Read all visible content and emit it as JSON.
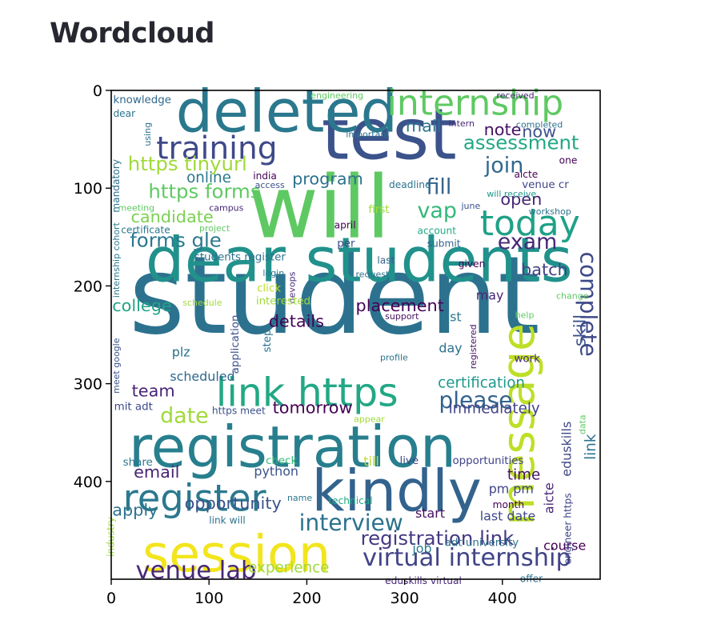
{
  "page": {
    "title": "Wordcloud"
  },
  "chart_data": {
    "type": "wordcloud",
    "title": "",
    "xlabel": "",
    "ylabel": "",
    "xlim": [
      0,
      500
    ],
    "ylim": [
      500,
      0
    ],
    "xticks": [
      0,
      100,
      200,
      300,
      400
    ],
    "yticks": [
      0,
      100,
      200,
      300,
      400
    ],
    "colormap": "viridis",
    "words": [
      {
        "text": "student",
        "x": 18,
        "y": 248,
        "size": 110,
        "color": "#2c728e"
      },
      {
        "text": "will",
        "x": 140,
        "y": 150,
        "size": 88,
        "color": "#5ec962"
      },
      {
        "text": "dear students",
        "x": 35,
        "y": 195,
        "size": 63,
        "color": "#21918c"
      },
      {
        "text": "test",
        "x": 215,
        "y": 70,
        "size": 72,
        "color": "#3b528b"
      },
      {
        "text": "deleted",
        "x": 66,
        "y": 42,
        "size": 60,
        "color": "#2a788e"
      },
      {
        "text": "registration",
        "x": 18,
        "y": 385,
        "size": 58,
        "color": "#277f8e"
      },
      {
        "text": "message",
        "x": 432,
        "y": 445,
        "size": 46,
        "color": "#bddf26",
        "rot": -90
      },
      {
        "text": "kindly",
        "x": 205,
        "y": 430,
        "size": 58,
        "color": "#33638d"
      },
      {
        "text": "session",
        "x": 32,
        "y": 492,
        "size": 52,
        "color": "#f2e51d"
      },
      {
        "text": "internship",
        "x": 282,
        "y": 25,
        "size": 36,
        "color": "#5ec962"
      },
      {
        "text": "link https",
        "x": 107,
        "y": 323,
        "size": 40,
        "color": "#22a884"
      },
      {
        "text": "register",
        "x": 12,
        "y": 430,
        "size": 38,
        "color": "#2a788e"
      },
      {
        "text": "today",
        "x": 377,
        "y": 148,
        "size": 36,
        "color": "#1fa187"
      },
      {
        "text": "training",
        "x": 46,
        "y": 70,
        "size": 32,
        "color": "#3e4989"
      },
      {
        "text": "virtual internship",
        "x": 257,
        "y": 486,
        "size": 25,
        "color": "#414487"
      },
      {
        "text": "venue lab",
        "x": 25,
        "y": 499,
        "size": 25,
        "color": "#482878"
      },
      {
        "text": "complete",
        "x": 480,
        "y": 165,
        "size": 23,
        "color": "#3e4989",
        "rot": 90
      },
      {
        "text": "please",
        "x": 335,
        "y": 325,
        "size": 23,
        "color": "#33638d"
      },
      {
        "text": "interview",
        "x": 192,
        "y": 450,
        "size": 23,
        "color": "#2c728e"
      },
      {
        "text": "registration link",
        "x": 255,
        "y": 465,
        "size": 20,
        "color": "#443983"
      },
      {
        "text": "https tinyurl",
        "x": 17,
        "y": 82,
        "size": 20,
        "color": "#a0da39"
      },
      {
        "text": "https forms",
        "x": 38,
        "y": 110,
        "size": 20,
        "color": "#5ec962"
      },
      {
        "text": "forms gle",
        "x": 19,
        "y": 160,
        "size": 20,
        "color": "#2a788e"
      },
      {
        "text": "assessment",
        "x": 360,
        "y": 60,
        "size": 20,
        "color": "#22a884"
      },
      {
        "text": "join",
        "x": 382,
        "y": 84,
        "size": 22,
        "color": "#31688e"
      },
      {
        "text": "fill",
        "x": 322,
        "y": 106,
        "size": 22,
        "color": "#33638d"
      },
      {
        "text": "vap",
        "x": 313,
        "y": 130,
        "size": 22,
        "color": "#35b779"
      },
      {
        "text": "exam",
        "x": 395,
        "y": 162,
        "size": 22,
        "color": "#482878"
      },
      {
        "text": "date",
        "x": 50,
        "y": 340,
        "size": 22,
        "color": "#a0da39"
      },
      {
        "text": "candidate",
        "x": 20,
        "y": 135,
        "size": 17,
        "color": "#7ad151"
      },
      {
        "text": "program",
        "x": 185,
        "y": 96,
        "size": 17,
        "color": "#2c728e"
      },
      {
        "text": "mail",
        "x": 301,
        "y": 42,
        "size": 17,
        "color": "#2c728e"
      },
      {
        "text": "note",
        "x": 381,
        "y": 46,
        "size": 17,
        "color": "#471063"
      },
      {
        "text": "now",
        "x": 420,
        "y": 48,
        "size": 17,
        "color": "#3b528b"
      },
      {
        "text": "open",
        "x": 398,
        "y": 117,
        "size": 17,
        "color": "#482475"
      },
      {
        "text": "batch",
        "x": 419,
        "y": 189,
        "size": 17,
        "color": "#424086"
      },
      {
        "text": "placement",
        "x": 250,
        "y": 226,
        "size": 17,
        "color": "#440154"
      },
      {
        "text": "details",
        "x": 161,
        "y": 242,
        "size": 17,
        "color": "#440154"
      },
      {
        "text": "college",
        "x": 1,
        "y": 226,
        "size": 17,
        "color": "#20a486"
      },
      {
        "text": "team",
        "x": 21,
        "y": 313,
        "size": 17,
        "color": "#482475"
      },
      {
        "text": "tomorrow",
        "x": 165,
        "y": 330,
        "size": 17,
        "color": "#440154"
      },
      {
        "text": "skill",
        "x": 485,
        "y": 262,
        "size": 17,
        "color": "#3b528b",
        "rot": -90
      },
      {
        "text": "certification",
        "x": 334,
        "y": 304,
        "size": 15,
        "color": "#1f988b"
      },
      {
        "text": "immediately",
        "x": 345,
        "y": 330,
        "size": 15,
        "color": "#414487"
      },
      {
        "text": "email",
        "x": 23,
        "y": 396,
        "size": 17,
        "color": "#482475"
      },
      {
        "text": "apply",
        "x": 1,
        "y": 435,
        "size": 17,
        "color": "#2c728e"
      },
      {
        "text": "opportunity",
        "x": 75,
        "y": 428,
        "size": 17,
        "color": "#3b528b"
      },
      {
        "text": "experience",
        "x": 140,
        "y": 493,
        "size": 15,
        "color": "#a0da39"
      },
      {
        "text": "online",
        "x": 77,
        "y": 94,
        "size": 15,
        "color": "#2a788e"
      },
      {
        "text": "students register",
        "x": 85,
        "y": 174,
        "size": 11,
        "color": "#2c728e"
      },
      {
        "text": "python",
        "x": 146,
        "y": 394,
        "size": 13,
        "color": "#3b528b"
      },
      {
        "text": "time",
        "x": 405,
        "y": 398,
        "size": 15,
        "color": "#471063"
      },
      {
        "text": "pm pm",
        "x": 386,
        "y": 412,
        "size": 13,
        "color": "#414487"
      },
      {
        "text": "last date",
        "x": 377,
        "y": 440,
        "size": 13,
        "color": "#3e4989"
      },
      {
        "text": "course",
        "x": 442,
        "y": 470,
        "size": 13,
        "color": "#440154"
      },
      {
        "text": "link",
        "x": 495,
        "y": 378,
        "size": 15,
        "color": "#2c728e",
        "rot": -90
      },
      {
        "text": "may",
        "x": 373,
        "y": 214,
        "size": 13,
        "color": "#482475"
      },
      {
        "text": "list",
        "x": 339,
        "y": 236,
        "size": 13,
        "color": "#2a788e"
      },
      {
        "text": "day",
        "x": 335,
        "y": 268,
        "size": 13,
        "color": "#2c728e"
      },
      {
        "text": "work",
        "x": 412,
        "y": 278,
        "size": 11,
        "color": "#482878"
      },
      {
        "text": "plz",
        "x": 62,
        "y": 272,
        "size": 13,
        "color": "#2c728e"
      },
      {
        "text": "scheduled",
        "x": 60,
        "y": 297,
        "size": 13,
        "color": "#31688e"
      },
      {
        "text": "mit adt",
        "x": 3,
        "y": 327,
        "size": 11,
        "color": "#3e4989"
      },
      {
        "text": "https meet",
        "x": 103,
        "y": 331,
        "size": 10,
        "color": "#3b528b"
      },
      {
        "text": "share",
        "x": 12,
        "y": 384,
        "size": 11,
        "color": "#2a788e"
      },
      {
        "text": "check",
        "x": 158,
        "y": 382,
        "size": 11,
        "color": "#35b779"
      },
      {
        "text": "till",
        "x": 258,
        "y": 384,
        "size": 13,
        "color": "#bddf26"
      },
      {
        "text": "live",
        "x": 295,
        "y": 382,
        "size": 11,
        "color": "#3e4989"
      },
      {
        "text": "opportunities",
        "x": 349,
        "y": 382,
        "size": 11,
        "color": "#414487"
      },
      {
        "text": "name",
        "x": 180,
        "y": 420,
        "size": 9,
        "color": "#2a788e"
      },
      {
        "text": "technical",
        "x": 222,
        "y": 423,
        "size": 10,
        "color": "#22a884"
      },
      {
        "text": "start",
        "x": 311,
        "y": 437,
        "size": 13,
        "color": "#471063"
      },
      {
        "text": "month",
        "x": 390,
        "y": 427,
        "size": 10,
        "color": "#440154"
      },
      {
        "text": "link will",
        "x": 100,
        "y": 443,
        "size": 10,
        "color": "#2c728e"
      },
      {
        "text": "industry",
        "x": 3,
        "y": 477,
        "size": 10,
        "color": "#a0da39",
        "rot": -90
      },
      {
        "text": "job",
        "x": 308,
        "y": 473,
        "size": 13,
        "color": "#2a788e"
      },
      {
        "text": "adt university",
        "x": 341,
        "y": 466,
        "size": 11,
        "color": "#2c728e"
      },
      {
        "text": "eduskills virtual",
        "x": 280,
        "y": 505,
        "size": 10,
        "color": "#482878"
      },
      {
        "text": "offer",
        "x": 418,
        "y": 503,
        "size": 10,
        "color": "#2c728e"
      },
      {
        "text": "eduskills",
        "x": 470,
        "y": 395,
        "size": 13,
        "color": "#3e4989",
        "rot": -90
      },
      {
        "text": "aicte",
        "x": 452,
        "y": 433,
        "size": 13,
        "color": "#482475",
        "rot": -90
      },
      {
        "text": "data",
        "x": 485,
        "y": 352,
        "size": 9,
        "color": "#5ec962",
        "rot": -90
      },
      {
        "text": "engineer https",
        "x": 470,
        "y": 485,
        "size": 10,
        "color": "#414487",
        "rot": -90
      },
      {
        "text": "knowledge",
        "x": 2,
        "y": 13,
        "size": 11,
        "color": "#31688e"
      },
      {
        "text": "engineering",
        "x": 204,
        "y": 8,
        "size": 9,
        "color": "#5ec962"
      },
      {
        "text": "received",
        "x": 394,
        "y": 8,
        "size": 9,
        "color": "#482475"
      },
      {
        "text": "dear",
        "x": 2,
        "y": 27,
        "size": 10,
        "color": "#2a788e"
      },
      {
        "text": "important",
        "x": 240,
        "y": 48,
        "size": 9,
        "color": "#2c728e"
      },
      {
        "text": "intern",
        "x": 345,
        "y": 37,
        "size": 9,
        "color": "#482878"
      },
      {
        "text": "completed",
        "x": 414,
        "y": 38,
        "size": 9,
        "color": "#2c728e"
      },
      {
        "text": "one",
        "x": 458,
        "y": 75,
        "size": 10,
        "color": "#440154"
      },
      {
        "text": "aicte",
        "x": 412,
        "y": 89,
        "size": 10,
        "color": "#440154"
      },
      {
        "text": "venue cr",
        "x": 420,
        "y": 100,
        "size": 11,
        "color": "#414487"
      },
      {
        "text": "will receive",
        "x": 384,
        "y": 109,
        "size": 9,
        "color": "#1f988b"
      },
      {
        "text": "india",
        "x": 145,
        "y": 91,
        "size": 10,
        "color": "#440154"
      },
      {
        "text": "access",
        "x": 147,
        "y": 100,
        "size": 9,
        "color": "#3b528b"
      },
      {
        "text": "deadline",
        "x": 284,
        "y": 100,
        "size": 10,
        "color": "#2c728e"
      },
      {
        "text": "meeting",
        "x": 7,
        "y": 123,
        "size": 9,
        "color": "#5ec962"
      },
      {
        "text": "campus",
        "x": 100,
        "y": 123,
        "size": 9,
        "color": "#482878"
      },
      {
        "text": "first",
        "x": 263,
        "y": 125,
        "size": 11,
        "color": "#a0da39"
      },
      {
        "text": "june",
        "x": 358,
        "y": 121,
        "size": 9,
        "color": "#3b528b"
      },
      {
        "text": "workshop",
        "x": 427,
        "y": 127,
        "size": 9,
        "color": "#2c728e"
      },
      {
        "text": "certificate",
        "x": 10,
        "y": 146,
        "size": 10,
        "color": "#2a788e"
      },
      {
        "text": "project",
        "x": 90,
        "y": 144,
        "size": 9,
        "color": "#5ec962"
      },
      {
        "text": "april",
        "x": 228,
        "y": 141,
        "size": 10,
        "color": "#440154"
      },
      {
        "text": "account",
        "x": 313,
        "y": 147,
        "size": 10,
        "color": "#22a884"
      },
      {
        "text": "per",
        "x": 231,
        "y": 160,
        "size": 11,
        "color": "#3e4989"
      },
      {
        "text": "last",
        "x": 272,
        "y": 177,
        "size": 10,
        "color": "#33638d"
      },
      {
        "text": "submit",
        "x": 323,
        "y": 160,
        "size": 10,
        "color": "#33638d"
      },
      {
        "text": "request",
        "x": 250,
        "y": 191,
        "size": 9,
        "color": "#2c728e"
      },
      {
        "text": "given",
        "x": 355,
        "y": 181,
        "size": 10,
        "color": "#440154"
      },
      {
        "text": "login",
        "x": 155,
        "y": 190,
        "size": 9,
        "color": "#2a788e"
      },
      {
        "text": "click",
        "x": 149,
        "y": 206,
        "size": 11,
        "color": "#bddf26"
      },
      {
        "text": "devops",
        "x": 188,
        "y": 218,
        "size": 9,
        "color": "#482878",
        "rot": -90
      },
      {
        "text": "interested",
        "x": 148,
        "y": 219,
        "size": 11,
        "color": "#a0da39"
      },
      {
        "text": "schedule",
        "x": 73,
        "y": 220,
        "size": 9,
        "color": "#a0da39"
      },
      {
        "text": "support",
        "x": 280,
        "y": 234,
        "size": 9,
        "color": "#471063"
      },
      {
        "text": "help",
        "x": 413,
        "y": 233,
        "size": 9,
        "color": "#5ec962"
      },
      {
        "text": "change",
        "x": 455,
        "y": 213,
        "size": 9,
        "color": "#5ec962"
      },
      {
        "text": "profile",
        "x": 275,
        "y": 276,
        "size": 9,
        "color": "#2c728e"
      },
      {
        "text": "appear",
        "x": 248,
        "y": 339,
        "size": 9,
        "color": "#a0da39"
      },
      {
        "text": "registered",
        "x": 373,
        "y": 285,
        "size": 9,
        "color": "#471063",
        "rot": -90
      },
      {
        "text": "application",
        "x": 130,
        "y": 290,
        "size": 11,
        "color": "#3b528b",
        "rot": -90
      },
      {
        "text": "step",
        "x": 163,
        "y": 268,
        "size": 11,
        "color": "#2c728e",
        "rot": -90
      },
      {
        "text": "using",
        "x": 40,
        "y": 57,
        "size": 9,
        "color": "#2c728e",
        "rot": -90
      },
      {
        "text": "mandatory",
        "x": 8,
        "y": 125,
        "size": 10,
        "color": "#2c728e",
        "rot": -90
      },
      {
        "text": "internship cohort",
        "x": 8,
        "y": 212,
        "size": 9,
        "color": "#2a788e",
        "rot": -90
      },
      {
        "text": "meet google",
        "x": 8,
        "y": 310,
        "size": 9,
        "color": "#3b528b",
        "rot": -90
      }
    ]
  }
}
